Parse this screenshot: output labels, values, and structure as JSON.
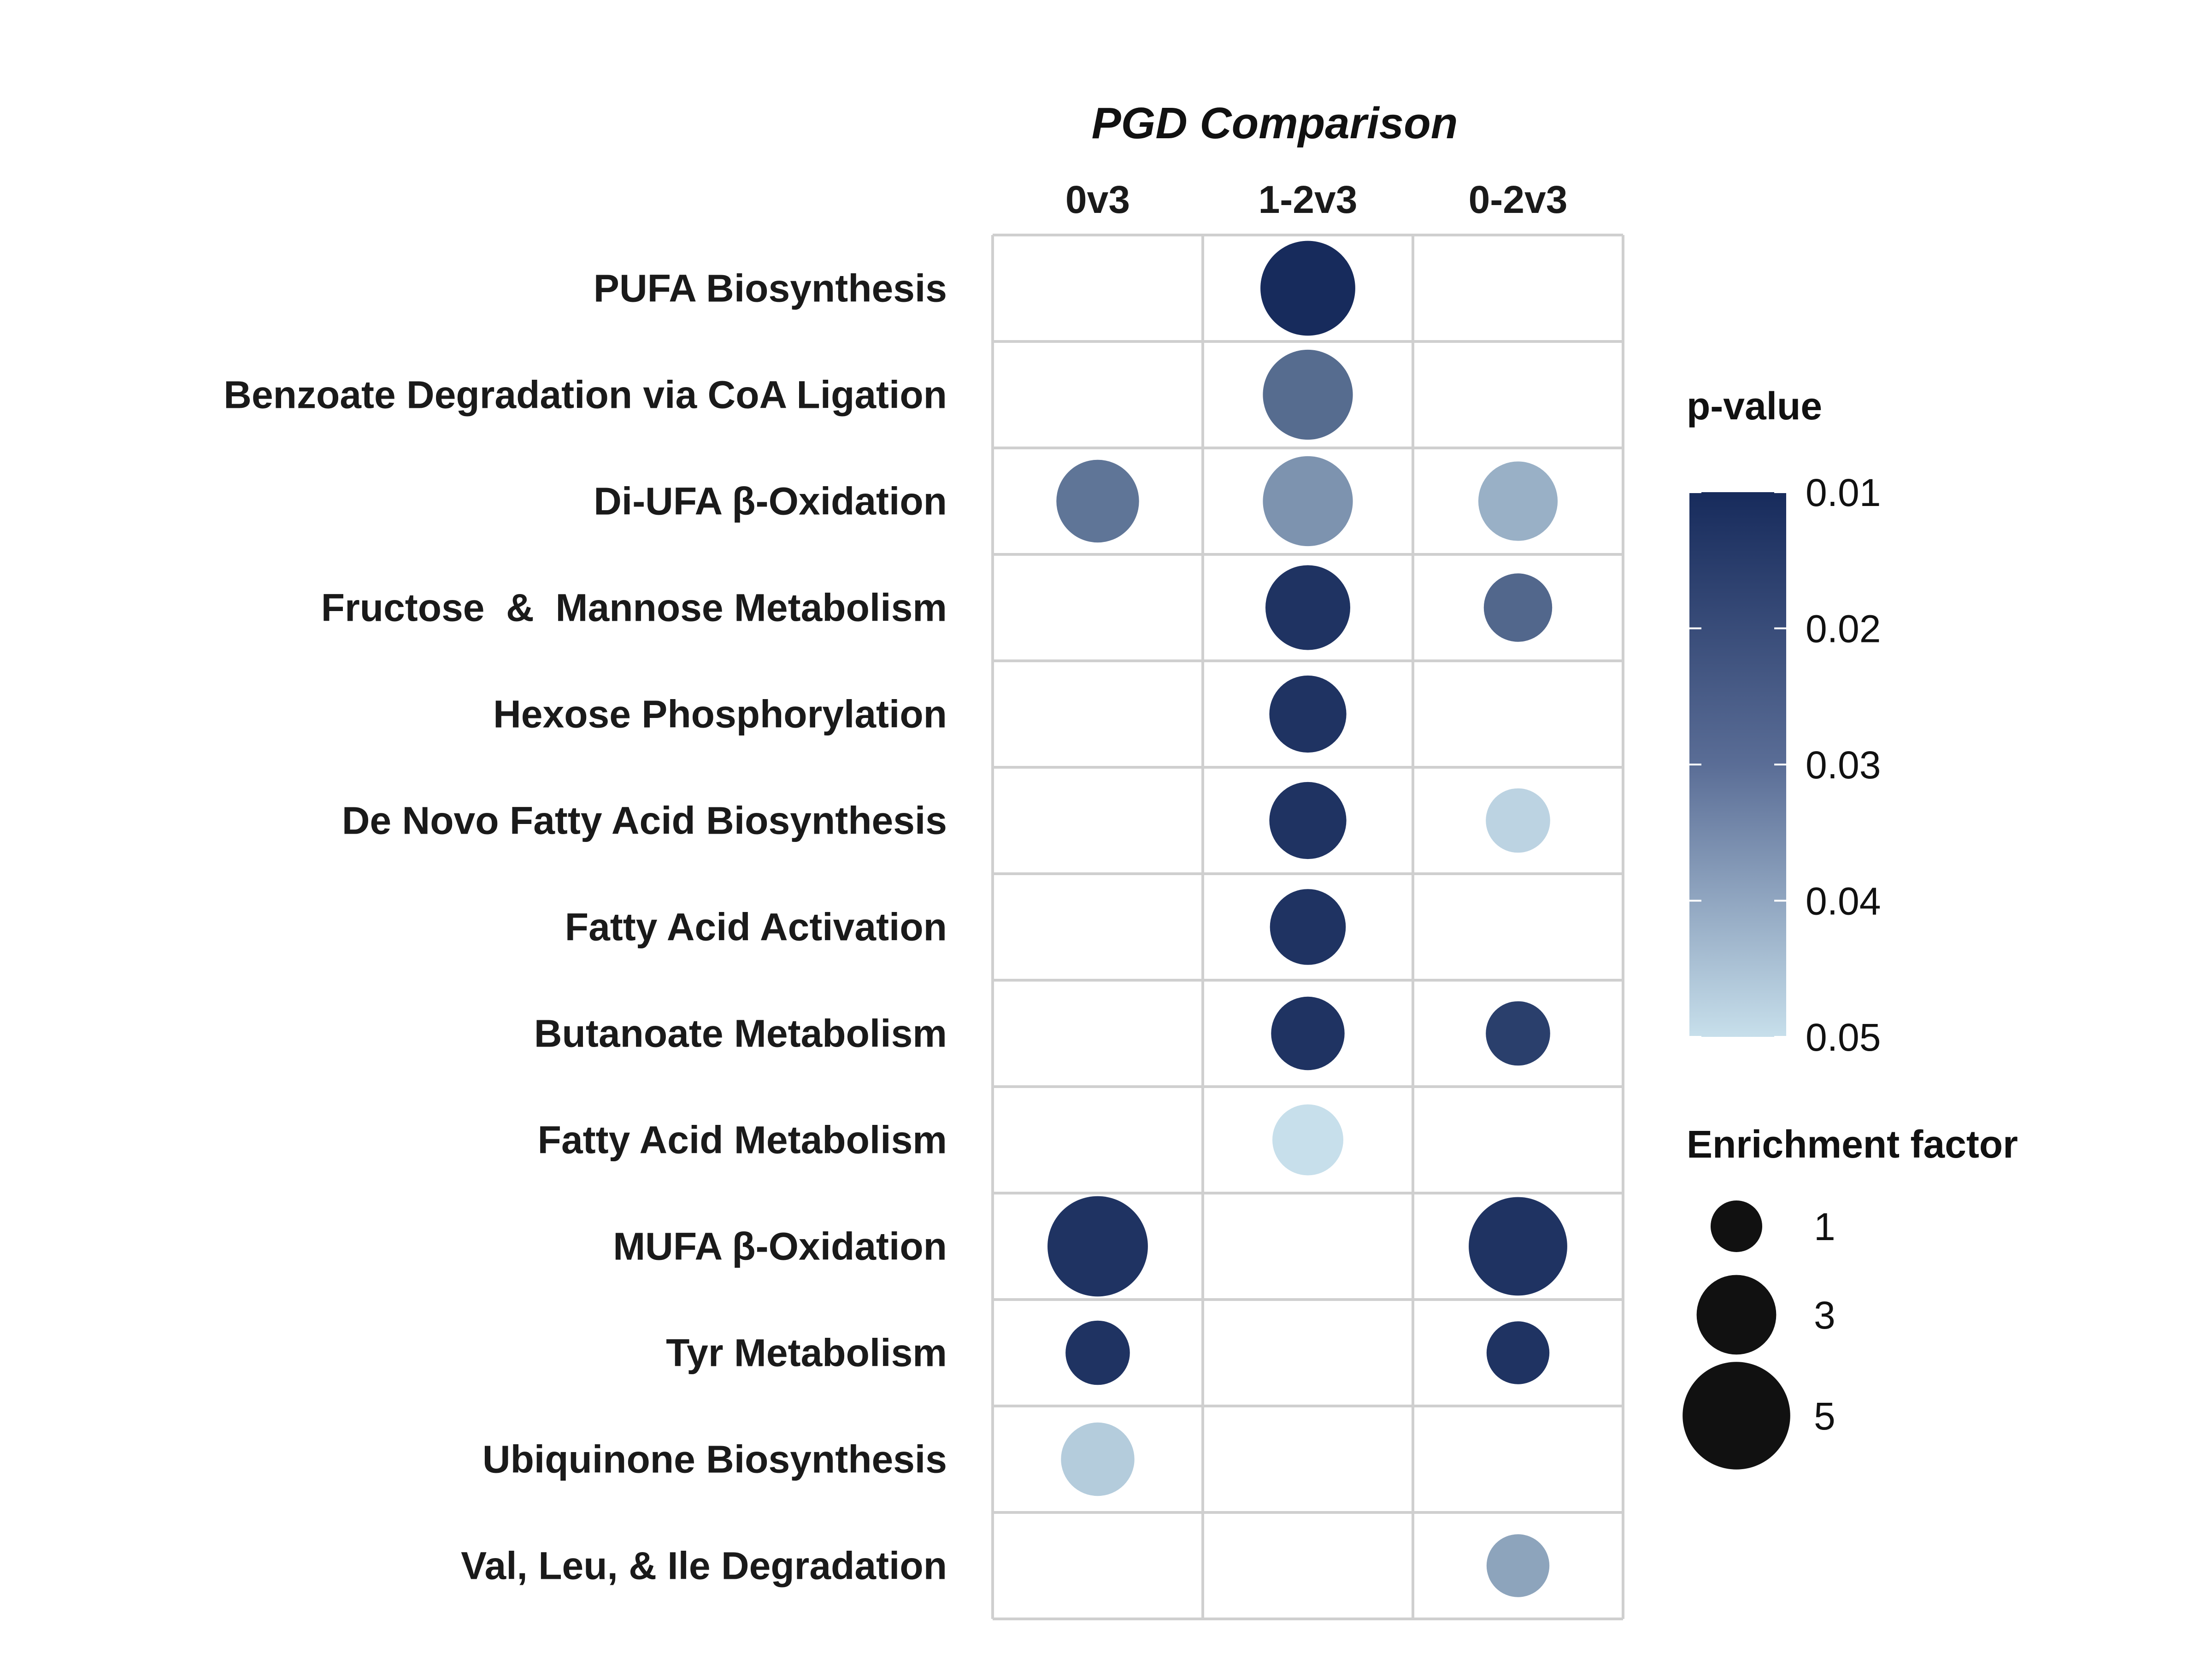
{
  "chart_data": {
    "type": "bubble",
    "title": "PGD Comparison",
    "columns": [
      "0v3",
      "1-2v3",
      "0-2v3"
    ],
    "rows": [
      "PUFA Biosynthesis",
      "Benzoate Degradation via CoA Ligation",
      "Di-UFA β-Oxidation",
      "Fructose  &  Mannose Metabolism",
      "Hexose Phosphorylation",
      "De Novo Fatty Acid Biosynthesis",
      "Fatty Acid Activation",
      "Butanoate Metabolism",
      "Fatty Acid Metabolism",
      "MUFA β-Oxidation",
      "Tyr Metabolism",
      "Ubiquinone Biosynthesis",
      "Val, Leu, & Ile Degradation"
    ],
    "points": [
      {
        "row": "PUFA Biosynthesis",
        "column": "1-2v3",
        "enrichment": 5.0,
        "p_value": 0.01
      },
      {
        "row": "Benzoate Degradation via CoA Ligation",
        "column": "1-2v3",
        "enrichment": 4.5,
        "p_value": 0.022
      },
      {
        "row": "Di-UFA β-Oxidation",
        "column": "0v3",
        "enrichment": 3.8,
        "p_value": 0.024
      },
      {
        "row": "Di-UFA β-Oxidation",
        "column": "1-2v3",
        "enrichment": 4.5,
        "p_value": 0.031
      },
      {
        "row": "Di-UFA β-Oxidation",
        "column": "0-2v3",
        "enrichment": 3.5,
        "p_value": 0.038
      },
      {
        "row": "Fructose  &  Mannose Metabolism",
        "column": "1-2v3",
        "enrichment": 4.0,
        "p_value": 0.011
      },
      {
        "row": "Fructose  &  Mannose Metabolism",
        "column": "0-2v3",
        "enrichment": 2.6,
        "p_value": 0.021
      },
      {
        "row": "Hexose Phosphorylation",
        "column": "1-2v3",
        "enrichment": 3.3,
        "p_value": 0.011
      },
      {
        "row": "De Novo Fatty Acid Biosynthesis",
        "column": "1-2v3",
        "enrichment": 3.3,
        "p_value": 0.011
      },
      {
        "row": "De Novo Fatty Acid Biosynthesis",
        "column": "0-2v3",
        "enrichment": 2.3,
        "p_value": 0.047
      },
      {
        "row": "Fatty Acid Activation",
        "column": "1-2v3",
        "enrichment": 3.2,
        "p_value": 0.011
      },
      {
        "row": "Butanoate Metabolism",
        "column": "1-2v3",
        "enrichment": 3.0,
        "p_value": 0.011
      },
      {
        "row": "Butanoate Metabolism",
        "column": "0-2v3",
        "enrichment": 2.3,
        "p_value": 0.013
      },
      {
        "row": "Fatty Acid Metabolism",
        "column": "1-2v3",
        "enrichment": 2.8,
        "p_value": 0.05
      },
      {
        "row": "MUFA β-Oxidation",
        "column": "0v3",
        "enrichment": 5.6,
        "p_value": 0.011
      },
      {
        "row": "MUFA β-Oxidation",
        "column": "0-2v3",
        "enrichment": 5.4,
        "p_value": 0.011
      },
      {
        "row": "Tyr Metabolism",
        "column": "0v3",
        "enrichment": 2.3,
        "p_value": 0.011
      },
      {
        "row": "Tyr Metabolism",
        "column": "0-2v3",
        "enrichment": 2.2,
        "p_value": 0.011
      },
      {
        "row": "Ubiquinone Biosynthesis",
        "column": "0v3",
        "enrichment": 3.0,
        "p_value": 0.045
      },
      {
        "row": "Val, Leu, & Ile Degradation",
        "column": "0-2v3",
        "enrichment": 2.2,
        "p_value": 0.035
      }
    ],
    "color_legend": {
      "title": "p-value",
      "ticks": [
        "0.01",
        "0.02",
        "0.03",
        "0.04",
        "0.05"
      ],
      "range": [
        0.01,
        0.05
      ],
      "high_color": "#172b5c",
      "low_color": "#c7dfeb"
    },
    "size_legend": {
      "title": "Enrichment factor",
      "values": [
        1,
        3,
        5
      ],
      "labels": [
        "1",
        "3",
        "5"
      ],
      "color": "#111111"
    },
    "grid": true
  }
}
